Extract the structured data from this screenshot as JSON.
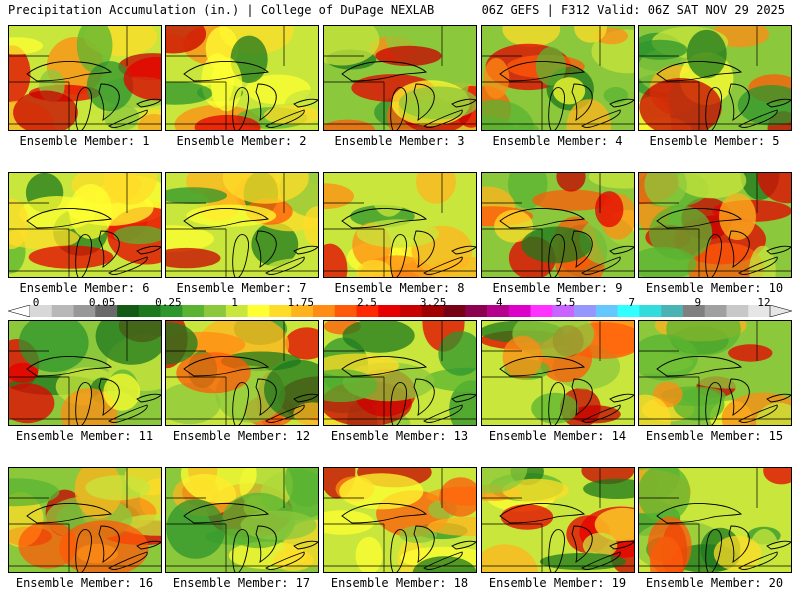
{
  "header": {
    "left": "Precipitation Accumulation (in.) | College of DuPage NEXLAB",
    "right": "06Z GEFS | F312 Valid: 06Z SAT NOV 29 2025"
  },
  "colorbar": {
    "tick_labels": [
      "0",
      "0.05",
      "0.25",
      "1",
      "1.75",
      "2.5",
      "3.25",
      "4",
      "5.5",
      "7",
      "9",
      "12"
    ],
    "colors": [
      "#d8d8d8",
      "#b8b8b8",
      "#989898",
      "#6a6a6a",
      "#145a14",
      "#1e781e",
      "#2d962d",
      "#5ab432",
      "#8cc83c",
      "#c8e63c",
      "#ffff32",
      "#ffdc28",
      "#ffb41e",
      "#ff8c14",
      "#ff5a0a",
      "#ff2800",
      "#e60000",
      "#c80000",
      "#a00000",
      "#780014",
      "#8c0050",
      "#b4008c",
      "#dc00c8",
      "#ff32ff",
      "#c864ff",
      "#9696ff",
      "#64c8ff",
      "#32ffff",
      "#32dcdc",
      "#4ab4b4",
      "#808080",
      "#a0a0a0",
      "#c8c8c8",
      "#e6e6e6"
    ]
  },
  "members": [
    {
      "label": "Ensemble Member: 1"
    },
    {
      "label": "Ensemble Member: 2"
    },
    {
      "label": "Ensemble Member: 3"
    },
    {
      "label": "Ensemble Member: 4"
    },
    {
      "label": "Ensemble Member: 5"
    },
    {
      "label": "Ensemble Member: 6"
    },
    {
      "label": "Ensemble Member: 7"
    },
    {
      "label": "Ensemble Member: 8"
    },
    {
      "label": "Ensemble Member: 9"
    },
    {
      "label": "Ensemble Member: 10"
    },
    {
      "label": "Ensemble Member: 11"
    },
    {
      "label": "Ensemble Member: 12"
    },
    {
      "label": "Ensemble Member: 13"
    },
    {
      "label": "Ensemble Member: 14"
    },
    {
      "label": "Ensemble Member: 15"
    },
    {
      "label": "Ensemble Member: 16"
    },
    {
      "label": "Ensemble Member: 17"
    },
    {
      "label": "Ensemble Member: 18"
    },
    {
      "label": "Ensemble Member: 19"
    },
    {
      "label": "Ensemble Member: 20"
    }
  ]
}
